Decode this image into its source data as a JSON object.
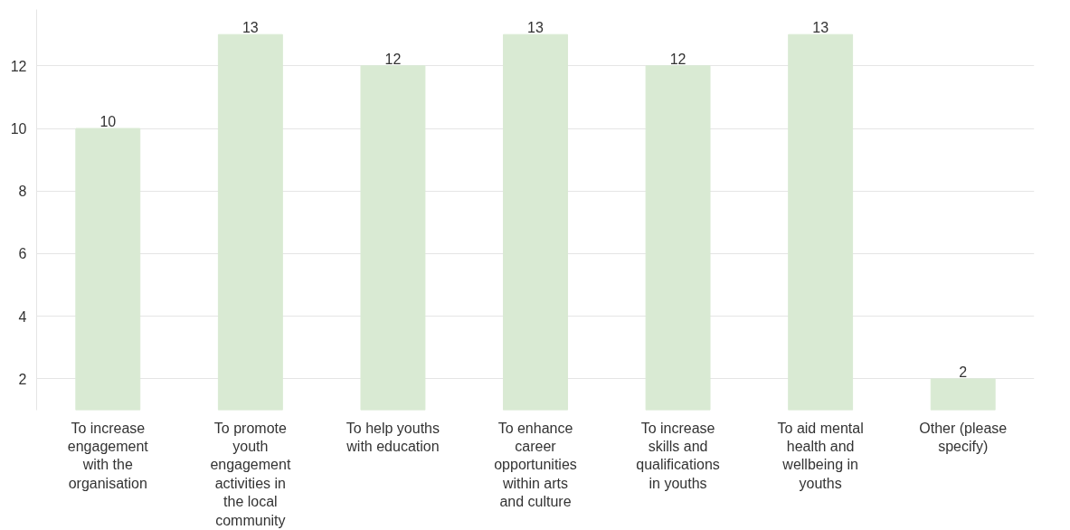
{
  "chart_data": {
    "type": "bar",
    "categories": [
      "To increase engagement with the organisation",
      "To promote youth engagement activities in the local community",
      "To help youths with education",
      "To enhance career opportunities within arts and culture",
      "To increase skills and qualifications in youths",
      "To aid mental health and wellbeing in youths",
      "Other (please specify)"
    ],
    "values": [
      10,
      13,
      12,
      13,
      12,
      13,
      2
    ],
    "color": "#d9ead3",
    "ylim": [
      1,
      13.8
    ],
    "yticks": [
      2,
      4,
      6,
      8,
      10,
      12
    ],
    "grid": "y",
    "data_labels": true
  }
}
